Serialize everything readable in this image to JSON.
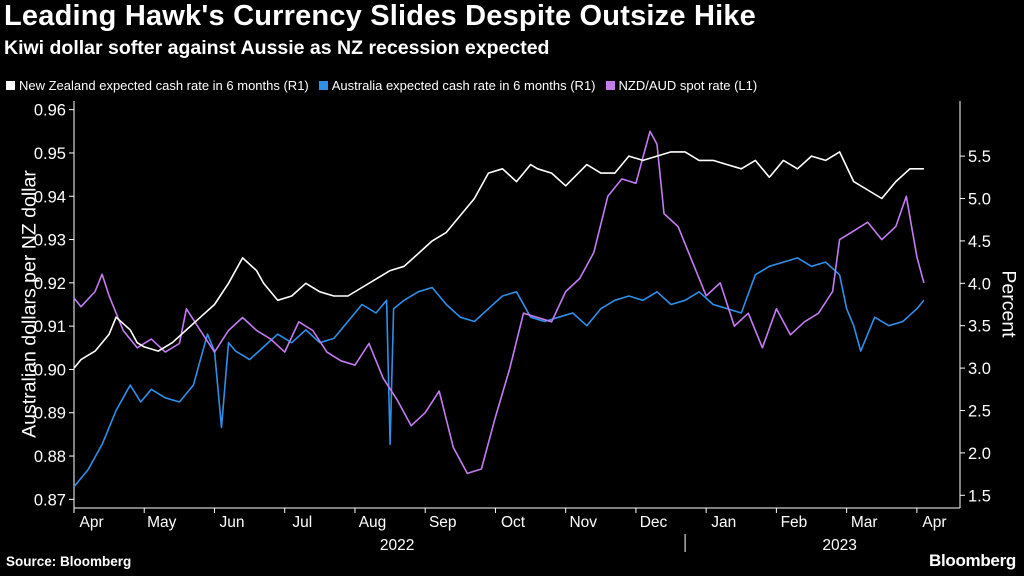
{
  "header": {
    "title": "Leading Hawk's Currency Slides Despite Outsize Hike",
    "subtitle": "Kiwi dollar softer against Aussie as NZ recession expected"
  },
  "footer": {
    "source": "Source: Bloomberg",
    "brand": "Bloomberg"
  },
  "colors": {
    "nz": "#ffffff",
    "au": "#2f8fe8",
    "spot": "#c37cf0",
    "background": "#000000"
  },
  "chart_data": {
    "type": "line",
    "title": "Leading Hawk's Currency Slides Despite Outsize Hike",
    "subtitle": "Kiwi dollar softer against Aussie as NZ recession expected",
    "ylabel_left": "Australian dollars per NZ dollar",
    "ylabel_right": "Percent",
    "ylim_left": [
      0.868,
      0.962
    ],
    "ylim_right": [
      1.35,
      6.15
    ],
    "yticks_left": [
      "0.96",
      "0.95",
      "0.94",
      "0.93",
      "0.92",
      "0.91",
      "0.90",
      "0.89",
      "0.88",
      "0.87"
    ],
    "yticks_right": [
      "5.5",
      "5.0",
      "4.5",
      "4.0",
      "3.5",
      "3.0",
      "2.5",
      "2.0",
      "1.5"
    ],
    "x_unit": "months since 1 Apr 2022",
    "xlim": [
      0,
      12.5
    ],
    "months": [
      "Apr",
      "May",
      "Jun",
      "Jul",
      "Aug",
      "Sep",
      "Oct",
      "Nov",
      "Dec",
      "Jan",
      "Feb",
      "Mar",
      "Apr"
    ],
    "years": [
      "2022",
      "2023"
    ],
    "legend": [
      "New Zealand expected cash rate in 6 months (R1)",
      "Australia expected cash rate in 6 months (R1)",
      "NZD/AUD spot rate (L1)"
    ],
    "series": [
      {
        "name": "New Zealand expected cash rate in 6 months (R1)",
        "axis": "right",
        "x": [
          0.0,
          0.1,
          0.3,
          0.5,
          0.6,
          0.8,
          0.9,
          1.0,
          1.2,
          1.4,
          1.6,
          1.8,
          2.0,
          2.2,
          2.4,
          2.6,
          2.7,
          2.9,
          3.1,
          3.3,
          3.5,
          3.7,
          3.9,
          4.1,
          4.3,
          4.5,
          4.7,
          4.9,
          5.1,
          5.3,
          5.5,
          5.7,
          5.9,
          6.1,
          6.3,
          6.5,
          6.6,
          6.8,
          7.0,
          7.3,
          7.5,
          7.7,
          7.9,
          8.1,
          8.3,
          8.5,
          8.7,
          8.9,
          9.1,
          9.3,
          9.5,
          9.7,
          9.9,
          10.1,
          10.3,
          10.5,
          10.7,
          10.9,
          11.1,
          11.3,
          11.5,
          11.7,
          11.9,
          12.1
        ],
        "values": [
          3.0,
          3.1,
          3.2,
          3.4,
          3.6,
          3.45,
          3.3,
          3.25,
          3.2,
          3.3,
          3.45,
          3.6,
          3.75,
          4.0,
          4.3,
          4.15,
          4.0,
          3.8,
          3.85,
          4.0,
          3.9,
          3.85,
          3.85,
          3.95,
          4.05,
          4.15,
          4.2,
          4.35,
          4.5,
          4.6,
          4.8,
          5.0,
          5.3,
          5.35,
          5.2,
          5.4,
          5.35,
          5.3,
          5.15,
          5.4,
          5.3,
          5.3,
          5.5,
          5.45,
          5.5,
          5.55,
          5.55,
          5.45,
          5.45,
          5.4,
          5.35,
          5.45,
          5.25,
          5.45,
          5.35,
          5.5,
          5.45,
          5.55,
          5.2,
          5.1,
          5.0,
          5.2,
          5.35,
          5.35
        ]
      },
      {
        "name": "Australia expected cash rate in 6 months (R1)",
        "axis": "right",
        "x": [
          0.0,
          0.2,
          0.4,
          0.6,
          0.8,
          0.95,
          1.1,
          1.3,
          1.5,
          1.7,
          1.8,
          1.9,
          2.0,
          2.1,
          2.2,
          2.3,
          2.5,
          2.7,
          2.9,
          3.1,
          3.3,
          3.5,
          3.7,
          3.9,
          4.1,
          4.3,
          4.45,
          4.5,
          4.55,
          4.7,
          4.9,
          5.1,
          5.3,
          5.5,
          5.7,
          5.9,
          6.1,
          6.3,
          6.5,
          6.7,
          6.9,
          7.1,
          7.3,
          7.5,
          7.7,
          7.9,
          8.1,
          8.3,
          8.5,
          8.7,
          8.9,
          9.1,
          9.3,
          9.5,
          9.7,
          9.9,
          10.1,
          10.3,
          10.5,
          10.7,
          10.9,
          11.0,
          11.1,
          11.2,
          11.4,
          11.6,
          11.8,
          12.0,
          12.1
        ],
        "values": [
          1.6,
          1.8,
          2.1,
          2.5,
          2.8,
          2.6,
          2.75,
          2.65,
          2.6,
          2.8,
          3.1,
          3.4,
          3.2,
          2.3,
          3.3,
          3.2,
          3.1,
          3.25,
          3.4,
          3.3,
          3.45,
          3.3,
          3.35,
          3.55,
          3.75,
          3.65,
          3.8,
          2.1,
          3.7,
          3.8,
          3.9,
          3.95,
          3.75,
          3.6,
          3.55,
          3.7,
          3.85,
          3.9,
          3.6,
          3.55,
          3.6,
          3.65,
          3.5,
          3.7,
          3.8,
          3.85,
          3.8,
          3.9,
          3.75,
          3.8,
          3.9,
          3.75,
          3.7,
          3.65,
          4.1,
          4.2,
          4.25,
          4.3,
          4.2,
          4.25,
          4.1,
          3.7,
          3.5,
          3.2,
          3.6,
          3.5,
          3.55,
          3.7,
          3.8
        ]
      },
      {
        "name": "NZD/AUD spot rate (L1)",
        "axis": "left",
        "x": [
          0.0,
          0.1,
          0.3,
          0.4,
          0.5,
          0.7,
          0.9,
          1.1,
          1.3,
          1.5,
          1.6,
          1.8,
          2.0,
          2.2,
          2.4,
          2.6,
          2.8,
          3.0,
          3.2,
          3.4,
          3.6,
          3.8,
          4.0,
          4.2,
          4.4,
          4.6,
          4.8,
          5.0,
          5.2,
          5.4,
          5.6,
          5.8,
          6.0,
          6.2,
          6.4,
          6.6,
          6.8,
          7.0,
          7.2,
          7.4,
          7.6,
          7.8,
          8.0,
          8.2,
          8.3,
          8.4,
          8.6,
          8.8,
          9.0,
          9.2,
          9.4,
          9.6,
          9.8,
          10.0,
          10.2,
          10.4,
          10.6,
          10.8,
          10.9,
          11.1,
          11.3,
          11.5,
          11.7,
          11.85,
          12.0,
          12.1
        ],
        "values": [
          0.9165,
          0.9145,
          0.918,
          0.922,
          0.917,
          0.909,
          0.905,
          0.907,
          0.904,
          0.906,
          0.914,
          0.909,
          0.904,
          0.909,
          0.912,
          0.909,
          0.907,
          0.904,
          0.911,
          0.909,
          0.904,
          0.902,
          0.901,
          0.906,
          0.898,
          0.893,
          0.887,
          0.89,
          0.895,
          0.882,
          0.876,
          0.877,
          0.889,
          0.9,
          0.913,
          0.912,
          0.911,
          0.918,
          0.921,
          0.927,
          0.94,
          0.944,
          0.943,
          0.955,
          0.952,
          0.936,
          0.933,
          0.925,
          0.917,
          0.92,
          0.91,
          0.913,
          0.905,
          0.914,
          0.908,
          0.911,
          0.913,
          0.918,
          0.93,
          0.932,
          0.934,
          0.93,
          0.933,
          0.94,
          0.926,
          0.92
        ]
      }
    ]
  }
}
